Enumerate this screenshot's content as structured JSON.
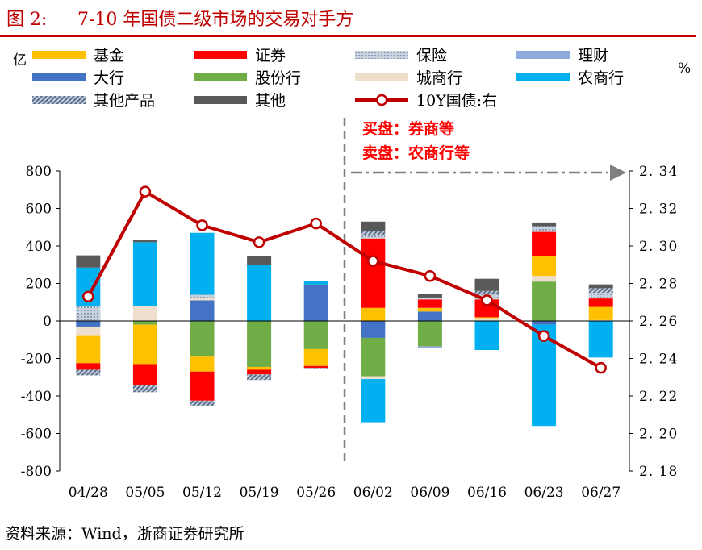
{
  "header": {
    "figure_label": "图 2:",
    "title": "7-10 年国债二级市场的交易对手方"
  },
  "footer": {
    "source": "资料来源：Wind，浙商证券研究所"
  },
  "chart_data": {
    "type": "bar",
    "subtype": "stacked-bar-with-line",
    "categories": [
      "04/28",
      "05/05",
      "05/12",
      "05/19",
      "05/26",
      "06/02",
      "06/09",
      "06/16",
      "06/23",
      "06/27"
    ],
    "left_axis": {
      "unit_label": "亿",
      "ylim": [
        -800,
        800
      ],
      "ticks": [
        800,
        600,
        400,
        200,
        0,
        -200,
        -400,
        -600,
        -800
      ]
    },
    "right_axis": {
      "unit_label": "%",
      "ylim": [
        2.18,
        2.34
      ],
      "ticks": [
        "2.34",
        "2.32",
        "2.30",
        "2.28",
        "2.26",
        "2.24",
        "2.22",
        "2.20",
        "2.18"
      ]
    },
    "series": [
      {
        "name": "大行",
        "color": "#4472c4",
        "pattern": "solid",
        "values": [
          -30,
          0,
          110,
          0,
          195,
          -90,
          50,
          0,
          -20,
          0
        ]
      },
      {
        "name": "股份行",
        "color": "#70ad47",
        "pattern": "solid",
        "values": [
          0,
          -20,
          -190,
          -245,
          -150,
          -205,
          -135,
          0,
          210,
          0
        ]
      },
      {
        "name": "城商行",
        "color": "#eedfcc",
        "pattern": "solid",
        "values": [
          -50,
          80,
          10,
          0,
          0,
          -15,
          0,
          15,
          30,
          5
        ]
      },
      {
        "name": "基金",
        "color": "#ffc000",
        "pattern": "solid",
        "values": [
          -145,
          -210,
          -80,
          -15,
          -90,
          70,
          20,
          5,
          105,
          70
        ]
      },
      {
        "name": "证券",
        "color": "#ff0000",
        "pattern": "solid",
        "values": [
          -35,
          -110,
          -155,
          -25,
          -10,
          370,
          45,
          95,
          130,
          45
        ]
      },
      {
        "name": "保险",
        "color": "#adb9ca",
        "pattern": "dots",
        "values": [
          80,
          0,
          20,
          0,
          -5,
          20,
          10,
          30,
          30,
          30
        ]
      },
      {
        "name": "理财",
        "color": "#8faadc",
        "pattern": "solid",
        "values": [
          0,
          0,
          0,
          0,
          0,
          0,
          -10,
          0,
          0,
          0
        ]
      },
      {
        "name": "农商行",
        "color": "#00b0f0",
        "pattern": "solid",
        "values": [
          205,
          340,
          330,
          300,
          20,
          -230,
          0,
          -155,
          -540,
          -195
        ]
      },
      {
        "name": "其他产品",
        "color": "#8497b0",
        "pattern": "hatch",
        "values": [
          -30,
          -40,
          -30,
          -30,
          0,
          20,
          0,
          15,
          0,
          25
        ]
      },
      {
        "name": "其他",
        "color": "#595959",
        "pattern": "solid",
        "values": [
          65,
          10,
          0,
          45,
          0,
          50,
          20,
          65,
          20,
          20
        ]
      }
    ],
    "line": {
      "name": "10Y国债:右",
      "color": "#c00000",
      "values": [
        2.273,
        2.329,
        2.311,
        2.302,
        2.312,
        2.292,
        2.284,
        2.271,
        2.252,
        2.235
      ]
    },
    "legend": {
      "placement": "top",
      "items": [
        "基金",
        "证券",
        "保险",
        "理财",
        "大行",
        "股份行",
        "城商行",
        "农商行",
        "其他产品",
        "其他",
        "10Y国债:右"
      ]
    },
    "annotation": {
      "divider_after": "05/26",
      "buy_text": "买盘：券商等",
      "sell_text": "卖盘：农商行等"
    }
  }
}
